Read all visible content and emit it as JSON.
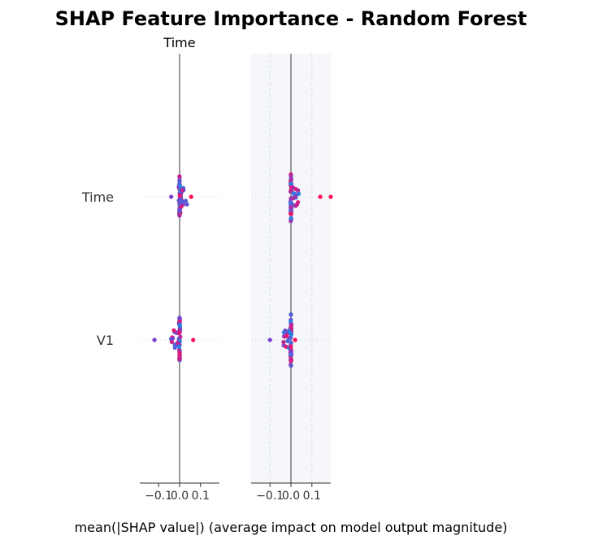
{
  "chart_data": {
    "type": "scatter",
    "title": "SHAP Feature Importance - Random Forest",
    "xlabel": "mean(|SHAP value|) (average impact on model output magnitude)",
    "colors": {
      "title": "#2c3e50",
      "low_feature_value": "#1e88e5",
      "mid_feature_value": "#7b3fd0",
      "high_feature_value": "#ff0d57",
      "zero_line": "#999999",
      "panel_background": "#f5f7fa",
      "grid": "#d9dde3"
    },
    "features": [
      "Time",
      "V1"
    ],
    "xlim": [
      -0.19,
      0.19
    ],
    "xticks": [
      -0.1,
      0.0,
      0.1
    ],
    "xtick_labels": [
      "−0.1",
      "0.0",
      "0.1"
    ],
    "panels": [
      {
        "title": "Time",
        "grid": false,
        "rows": [
          {
            "feature": "Time",
            "min": -0.04,
            "max": 0.06,
            "outliers": [
              -0.04,
              0.055
            ]
          },
          {
            "feature": "V1",
            "min": -0.12,
            "max": 0.07,
            "outliers": [
              -0.12,
              0.065
            ]
          }
        ]
      },
      {
        "title": "",
        "grid": true,
        "rows": [
          {
            "feature": "Time",
            "min": -0.03,
            "max": 0.19,
            "outliers": [
              0.14,
              0.19
            ]
          },
          {
            "feature": "V1",
            "min": -0.1,
            "max": 0.02,
            "outliers": [
              -0.1,
              0.02
            ]
          }
        ]
      }
    ]
  }
}
